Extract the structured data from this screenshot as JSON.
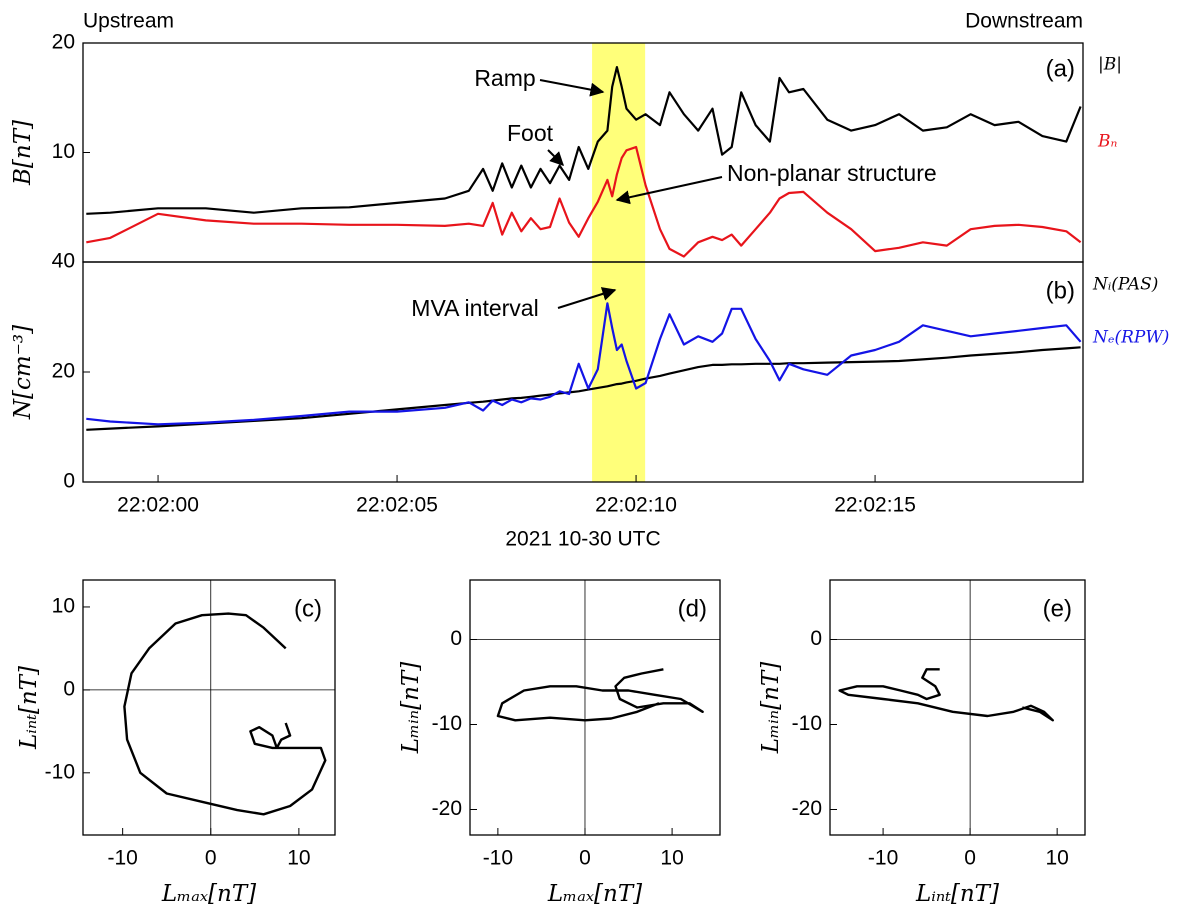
{
  "chart_data": [
    {
      "type": "line",
      "left_label": "Upstream",
      "right_label": "Downstream",
      "panel_label": "(a)",
      "ylabel": "B[nT]",
      "annotations": [
        "Ramp",
        "Foot",
        "Non-planar structure"
      ],
      "highlight": [
        9.08,
        10.19
      ],
      "x": [
        -1.5,
        -1,
        0,
        1,
        2,
        3,
        4,
        5,
        6,
        6.5,
        6.8,
        7.0,
        7.2,
        7.4,
        7.6,
        7.8,
        8.0,
        8.2,
        8.4,
        8.6,
        8.8,
        9.0,
        9.2,
        9.4,
        9.5,
        9.6,
        9.7,
        9.8,
        10.0,
        10.2,
        10.5,
        10.7,
        11.0,
        11.3,
        11.6,
        11.8,
        12.0,
        12.2,
        12.5,
        12.8,
        13.0,
        13.2,
        13.5,
        14.0,
        14.5,
        15.0,
        15.5,
        16.0,
        16.5,
        17.0,
        17.5,
        18.0,
        18.5,
        19.0,
        19.3
      ],
      "series": [
        {
          "name": "|B|",
          "color": "#000000",
          "values": [
            4.4,
            4.5,
            4.9,
            4.9,
            4.5,
            4.9,
            5.0,
            5.4,
            5.8,
            6.5,
            8.5,
            6.5,
            9.0,
            6.8,
            8.8,
            6.8,
            8.5,
            7.2,
            8.8,
            7.5,
            10.5,
            8.5,
            11,
            12,
            16,
            17.8,
            16,
            14,
            13,
            13.5,
            12.5,
            15.5,
            13.5,
            12,
            14,
            9.8,
            10.5,
            15.5,
            12.5,
            11,
            16.8,
            15.5,
            15.8,
            13,
            12,
            12.5,
            13.5,
            12,
            12.3,
            13.5,
            12.5,
            12.8,
            11.5,
            11,
            14.2
          ]
        },
        {
          "name": "Bₙ",
          "color": "#e8141b",
          "values": [
            1.8,
            2.2,
            4.4,
            3.8,
            3.5,
            3.5,
            3.4,
            3.4,
            3.3,
            3.5,
            3.3,
            5.4,
            2.5,
            4.5,
            2.8,
            4.0,
            3.0,
            3.2,
            5.8,
            3.6,
            2.3,
            4.0,
            5.5,
            7.5,
            6.0,
            8.0,
            9.5,
            10.2,
            10.5,
            7,
            3.0,
            1.2,
            0.5,
            1.8,
            2.3,
            2.0,
            2.5,
            1.5,
            3.0,
            4.5,
            5.8,
            6.3,
            6.4,
            4.5,
            3.0,
            1.0,
            1.3,
            1.8,
            1.5,
            3.0,
            3.3,
            3.4,
            3.2,
            2.8,
            1.8
          ]
        }
      ],
      "xlim": [
        -1.57,
        19.35
      ],
      "ylim": [
        0,
        20
      ],
      "yticks": [
        10,
        20
      ]
    },
    {
      "type": "line",
      "panel_label": "(b)",
      "ylabel": "N[cm⁻³]",
      "xlabel": "2021 10-30 UTC",
      "annotations": [
        "MVA interval"
      ],
      "x": [
        -1.5,
        -1,
        0,
        1,
        2,
        3,
        4,
        5,
        6,
        6.5,
        6.8,
        7.0,
        7.2,
        7.4,
        7.6,
        7.8,
        8.0,
        8.2,
        8.4,
        8.6,
        8.8,
        9.0,
        9.2,
        9.4,
        9.5,
        9.6,
        9.7,
        9.8,
        10.0,
        10.2,
        10.5,
        10.7,
        11.0,
        11.3,
        11.6,
        11.8,
        12.0,
        12.2,
        12.5,
        12.8,
        13.0,
        13.2,
        13.5,
        14.0,
        14.5,
        15.0,
        15.5,
        16.0,
        16.5,
        17.0,
        17.5,
        18.0,
        18.5,
        19.0,
        19.3
      ],
      "series": [
        {
          "name": "Nᵢ(PAS)",
          "color": "#000000",
          "values": [
            9.5,
            9.7,
            10.1,
            10.6,
            11.1,
            11.6,
            12.4,
            13.2,
            14.0,
            14.4,
            14.6,
            14.8,
            15.0,
            15.2,
            15.3,
            15.5,
            15.7,
            15.9,
            16.1,
            16.3,
            16.5,
            16.8,
            17.1,
            17.4,
            17.6,
            17.8,
            17.9,
            18.1,
            18.4,
            18.8,
            19.3,
            19.7,
            20.3,
            20.9,
            21.3,
            21.3,
            21.4,
            21.4,
            21.5,
            21.5,
            21.5,
            21.6,
            21.6,
            21.7,
            21.8,
            21.9,
            22.0,
            22.3,
            22.6,
            23.0,
            23.3,
            23.6,
            24.0,
            24.3,
            24.5
          ]
        },
        {
          "name": "Nₑ(RPW)",
          "color": "#1414e6",
          "values": [
            11.5,
            11.0,
            10.5,
            10.8,
            11.3,
            12,
            12.8,
            12.8,
            13.5,
            14.5,
            13.0,
            14.8,
            14.0,
            15.0,
            14.5,
            15.2,
            15.0,
            15.5,
            16.5,
            16.0,
            21.5,
            17.0,
            20.5,
            32.5,
            28,
            24,
            25,
            22,
            17,
            18,
            26,
            30.5,
            25,
            26.5,
            25.5,
            27,
            31.5,
            31.5,
            26,
            22,
            18.5,
            21.5,
            20.5,
            19.5,
            23,
            24,
            25.5,
            28.5,
            27.5,
            26.5,
            27,
            27.5,
            28,
            28.5,
            25.5
          ]
        }
      ],
      "xlim": [
        -1.57,
        19.35
      ],
      "ylim": [
        0,
        40
      ],
      "yticks": [
        0,
        20,
        40
      ],
      "xticks": [
        {
          "value": 0,
          "label": "22:02:00"
        },
        {
          "value": 5,
          "label": "22:02:05"
        },
        {
          "value": 10,
          "label": "22:02:10"
        },
        {
          "value": 15,
          "label": "22:02:15"
        }
      ]
    },
    {
      "type": "hodogram",
      "panel_label": "(c)",
      "xlabel": "Lₘₐₓ[nT]",
      "ylabel": "Lᵢₙₜ[nT]",
      "color": "#000000",
      "x": [
        8.5,
        6,
        4,
        2,
        -1,
        -4,
        -7,
        -9,
        -9.8,
        -9.5,
        -8,
        -5,
        -1,
        3,
        6,
        9,
        11.5,
        13,
        12.5,
        10,
        7,
        5,
        4.5,
        5.5,
        7,
        7.5,
        8,
        9,
        8.5
      ],
      "values": [
        5,
        7.5,
        9,
        9.2,
        9,
        8,
        5,
        2,
        -2,
        -6,
        -10,
        -12.5,
        -13.5,
        -14.5,
        -15,
        -14,
        -12,
        -8.5,
        -7,
        -7,
        -7,
        -6.5,
        -5,
        -4.5,
        -5.5,
        -7,
        -6,
        -5.5,
        -4
      ],
      "xlim": [
        -14.5,
        14.1
      ],
      "ylim": [
        -17.5,
        13.25
      ],
      "xticks": [
        -10,
        0,
        10
      ],
      "yticks": [
        -10,
        0,
        10
      ]
    },
    {
      "type": "hodogram",
      "panel_label": "(d)",
      "xlabel": "Lₘₐₓ[nT]",
      "ylabel": "Lₘᵢₙ[nT]",
      "color": "#000000",
      "x": [
        9,
        6.5,
        4.5,
        3.5,
        4,
        6,
        9,
        12,
        13.5,
        11,
        8,
        5,
        2,
        -1,
        -4,
        -7,
        -9.5,
        -10,
        -8,
        -4,
        0,
        3,
        6,
        8.5
      ],
      "values": [
        -3.5,
        -4,
        -4.5,
        -5.5,
        -7,
        -8,
        -7.5,
        -7.5,
        -8.5,
        -7,
        -6.5,
        -6,
        -6,
        -5.5,
        -5.5,
        -6,
        -7.5,
        -9,
        -9.5,
        -9.2,
        -9.5,
        -9.3,
        -8.5,
        -7.5
      ],
      "xlim": [
        -13.2,
        15.5
      ],
      "ylim": [
        -23,
        7
      ],
      "xticks": [
        -10,
        0,
        10
      ],
      "yticks": [
        -20,
        -10,
        0
      ]
    },
    {
      "type": "hodogram",
      "panel_label": "(e)",
      "xlabel": "Lᵢₙₜ[nT]",
      "ylabel": "Lₘᵢₙ[nT]",
      "color": "#000000",
      "x": [
        -3.5,
        -5,
        -5.5,
        -4,
        -3.5,
        -5,
        -6,
        -8,
        -10,
        -13,
        -15,
        -14,
        -10,
        -6,
        -2,
        2,
        5,
        7,
        8.5,
        9.5,
        8,
        6
      ],
      "values": [
        -3.5,
        -3.5,
        -4.5,
        -5.5,
        -6.5,
        -7,
        -6.5,
        -6,
        -5.5,
        -5.5,
        -6,
        -6.5,
        -7,
        -7.5,
        -8.5,
        -9,
        -8.5,
        -7.8,
        -8.5,
        -9.5,
        -8.5,
        -8
      ],
      "xlim": [
        -16.1,
        13.2
      ],
      "ylim": [
        -23,
        7
      ],
      "xticks": [
        -10,
        0,
        10
      ],
      "yticks": [
        -20,
        -10,
        0
      ]
    }
  ]
}
